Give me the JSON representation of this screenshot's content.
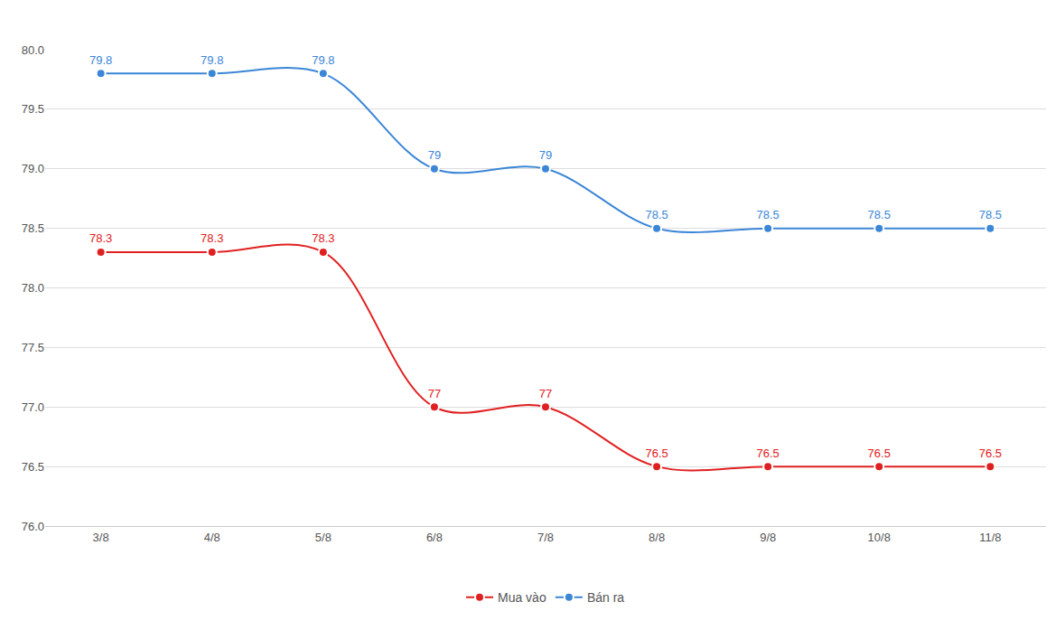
{
  "chart_data": {
    "type": "line",
    "categories": [
      "3/8",
      "4/8",
      "5/8",
      "6/8",
      "7/8",
      "8/8",
      "9/8",
      "10/8",
      "11/8"
    ],
    "series": [
      {
        "name": "Mua vào",
        "color": "#e02020",
        "marker": "circle",
        "values": [
          78.3,
          78.3,
          78.3,
          77,
          77,
          76.5,
          76.5,
          76.5,
          76.5
        ]
      },
      {
        "name": "Bán ra",
        "color": "#3b86d6",
        "marker": "circle",
        "values": [
          79.8,
          79.8,
          79.8,
          79,
          79,
          78.5,
          78.5,
          78.5,
          78.5
        ]
      }
    ],
    "ylim": [
      76,
      80
    ],
    "yticks": [
      {
        "value": 76,
        "label": "76.0"
      },
      76.5,
      {
        "value": 77,
        "label": "77.0"
      },
      77.5,
      {
        "value": 78,
        "label": "78.0"
      },
      78.5,
      {
        "value": 79,
        "label": "79.0"
      },
      79.5,
      {
        "value": 80,
        "label": "80.0"
      }
    ],
    "grid": true,
    "legend": "bottom",
    "data_labels": true
  }
}
